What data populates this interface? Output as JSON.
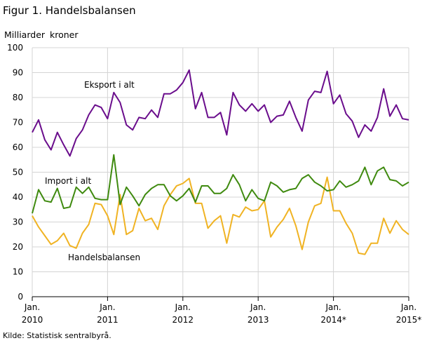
{
  "chart_data": {
    "type": "line",
    "title": "Figur 1. Handelsbalansen",
    "ylabel": "Milliarder  kroner",
    "source": "Kilde: Statistisk sentralbyrå.",
    "ylim": [
      0,
      100
    ],
    "yticks": [
      0,
      10,
      20,
      30,
      40,
      50,
      60,
      70,
      80,
      90,
      100
    ],
    "grid": true,
    "x_start": "2010-01",
    "x_end": "2015-01",
    "xtick_labels": [
      {
        "month": "Jan.",
        "year": "2010"
      },
      {
        "month": "Jan.",
        "year": "2011"
      },
      {
        "month": "Jan.",
        "year": "2012"
      },
      {
        "month": "Jan.",
        "year": "2013"
      },
      {
        "month": "Jan.",
        "year": "2014*"
      },
      {
        "month": "Jan.",
        "year": "2015*"
      }
    ],
    "series": [
      {
        "name": "Eksport i alt",
        "color": "#6a0d8c",
        "values": [
          66,
          71,
          63,
          59,
          66,
          61,
          56.5,
          63.5,
          67,
          73,
          77,
          76,
          71.5,
          82,
          78,
          69,
          67,
          72,
          71.5,
          75,
          72,
          81.5,
          81.5,
          83,
          86,
          91,
          75.5,
          82,
          72,
          72,
          74,
          65,
          82,
          77,
          74.5,
          77.5,
          74.5,
          77,
          70,
          72.5,
          73,
          78.5,
          72,
          66.5,
          79,
          82.5,
          82,
          90.5,
          77.5,
          81,
          73.5,
          70.5,
          64,
          69,
          66.5,
          72,
          83.5,
          72.5,
          77,
          71.5,
          71
        ]
      },
      {
        "name": "Import i alt",
        "color": "#3f8a0f",
        "values": [
          33.5,
          43,
          38.5,
          38,
          43.5,
          35.5,
          36,
          44,
          41.5,
          44,
          39.5,
          39,
          39,
          57,
          37,
          44,
          40.5,
          36.5,
          41,
          43.5,
          45,
          45,
          40.5,
          38.5,
          40.5,
          43.5,
          38,
          44.5,
          44.5,
          41.5,
          41.5,
          43.5,
          49,
          45,
          38.5,
          43,
          39.5,
          38.5,
          46,
          44.5,
          42,
          43,
          43.5,
          47.5,
          49,
          46,
          44.5,
          42.5,
          43,
          46.5,
          44,
          45,
          46.5,
          52,
          45,
          50.5,
          52,
          47,
          46.5,
          44.5,
          46
        ]
      },
      {
        "name": "Handelsbalansen",
        "color": "#f0b323",
        "values": [
          32.5,
          28,
          24.5,
          21,
          22.5,
          25.5,
          20.5,
          19.5,
          25.5,
          29,
          37.5,
          37,
          32.5,
          25,
          41,
          25,
          26.5,
          35.5,
          30.5,
          31.5,
          27,
          36.5,
          41,
          44.5,
          45.5,
          47.5,
          37.5,
          37.5,
          27.5,
          30.5,
          32.5,
          21.5,
          33,
          32,
          36,
          34.5,
          35,
          38.5,
          24,
          28,
          31,
          35.5,
          28.5,
          19,
          30,
          36.5,
          37.5,
          48,
          34.5,
          34.5,
          29.5,
          25.5,
          17.5,
          17,
          21.5,
          21.5,
          31.5,
          25.5,
          30.5,
          27,
          25
        ]
      }
    ]
  }
}
